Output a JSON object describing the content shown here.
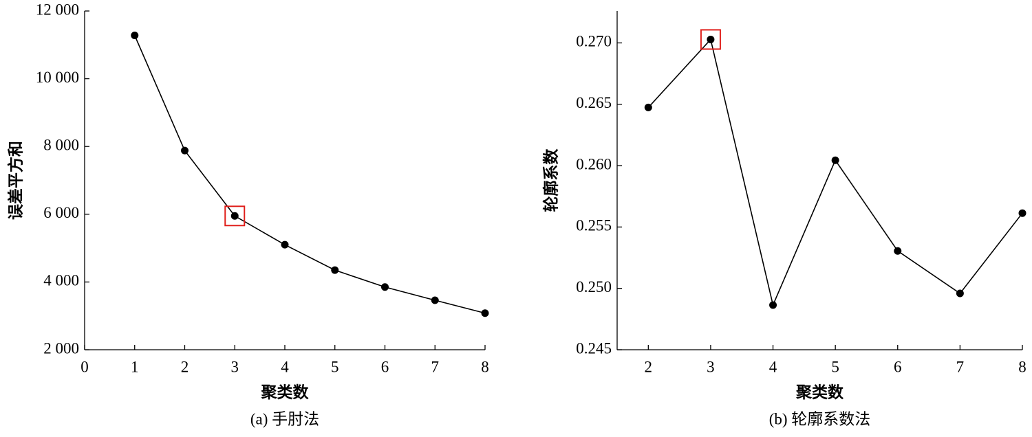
{
  "chart_data": [
    {
      "type": "line",
      "caption": "(a) 手肘法",
      "xlabel": "聚类数",
      "ylabel": "误差平方和",
      "x": [
        1,
        2,
        3,
        4,
        5,
        6,
        7,
        8
      ],
      "values": [
        11280,
        7880,
        5950,
        5100,
        4350,
        3850,
        3460,
        3080
      ],
      "color": "#000000",
      "marker": "circle",
      "xlim": [
        0,
        8
      ],
      "xticks": [
        0,
        1,
        2,
        3,
        4,
        5,
        6,
        7,
        8
      ],
      "ylim": [
        2000,
        12000
      ],
      "yticks": [
        {
          "value": 2000,
          "label": "2 000"
        },
        {
          "value": 4000,
          "label": "4 000"
        },
        {
          "value": 6000,
          "label": "6 000"
        },
        {
          "value": 8000,
          "label": "8 000"
        },
        {
          "value": 10000,
          "label": "10 000"
        },
        {
          "value": 12000,
          "label": "12 000"
        }
      ],
      "highlight_x": 3,
      "highlight_color": "#e0201c"
    },
    {
      "type": "line",
      "caption": "(b) 轮廓系数法",
      "xlabel": "聚类数",
      "ylabel": "轮廓系数",
      "x": [
        2,
        3,
        4,
        5,
        6,
        7,
        8
      ],
      "values": [
        0.26474,
        0.27028,
        0.24864,
        0.26044,
        0.25305,
        0.24959,
        0.25613
      ],
      "color": "#000000",
      "marker": "circle",
      "xlim": [
        1.5,
        8
      ],
      "xticks": [
        2,
        3,
        4,
        5,
        6,
        7,
        8
      ],
      "ylim": [
        0.245,
        0.2726
      ],
      "yticks": [
        {
          "value": 0.245,
          "label": "0.245"
        },
        {
          "value": 0.25,
          "label": "0.250"
        },
        {
          "value": 0.255,
          "label": "0.255"
        },
        {
          "value": 0.26,
          "label": "0.260"
        },
        {
          "value": 0.265,
          "label": "0.265"
        },
        {
          "value": 0.27,
          "label": "0.270"
        }
      ],
      "highlight_x": 3,
      "highlight_color": "#e0201c"
    }
  ]
}
